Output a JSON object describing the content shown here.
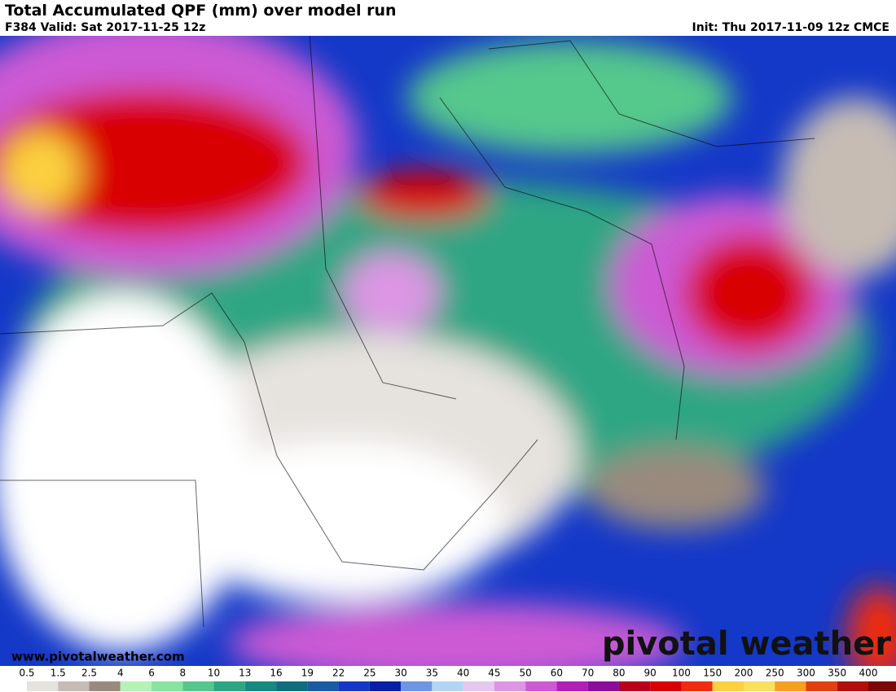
{
  "header": {
    "title": "Total Accumulated QPF (mm) over model run",
    "valid": "F384 Valid: Sat 2017-11-25 12z",
    "init": "Init: Thu 2017-11-09 12z CMCE"
  },
  "footer": {
    "website": "www.pivotalweather.com",
    "logo": "pivotal weather"
  },
  "legend": {
    "levels": [
      0.5,
      1.5,
      2.5,
      4,
      6,
      8,
      10,
      13,
      16,
      19,
      22,
      25,
      30,
      35,
      40,
      45,
      50,
      60,
      70,
      80,
      90,
      100,
      150,
      200,
      250,
      300,
      350,
      400
    ],
    "colors": [
      "#ffffff",
      "#e6e2de",
      "#c6bcb4",
      "#9a8a7e",
      "#b6f2b6",
      "#86e4a0",
      "#54c88c",
      "#2ea684",
      "#168a80",
      "#0e6e7c",
      "#1a5ca4",
      "#1438c8",
      "#0a1ea8",
      "#6e96e4",
      "#b4d4f4",
      "#e4c8ee",
      "#dc96e4",
      "#cc5ad4",
      "#b020b8",
      "#8a0e9a",
      "#b8001c",
      "#d80000",
      "#f02c10",
      "#fcd040",
      "#f8e060",
      "#f4a020",
      "#e04010",
      "#b0100a",
      "#7a0808"
    ]
  }
}
